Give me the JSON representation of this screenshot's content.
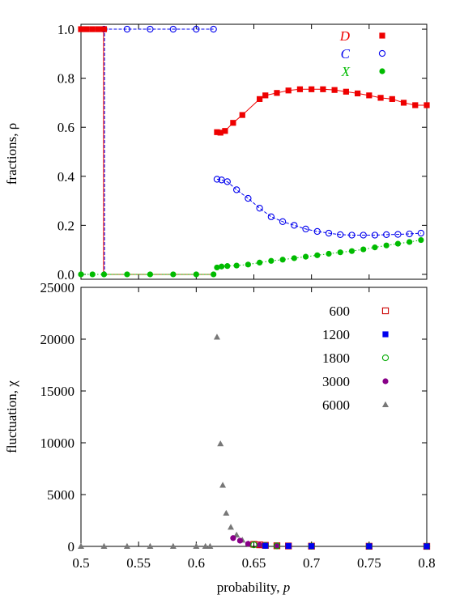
{
  "chart_data": [
    {
      "type": "line",
      "ylabel": "fractions, ρ",
      "xlim": [
        0.5,
        0.8
      ],
      "ylim": [
        -0.02,
        1.02
      ],
      "yticks": [
        "0.0",
        "0.2",
        "0.4",
        "0.6",
        "0.8",
        "1.0"
      ],
      "ytick_values": [
        0,
        0.2,
        0.4,
        0.6,
        0.8,
        1.0
      ],
      "legend_position": "top-right",
      "series": [
        {
          "name": "D",
          "color": "#ee0000",
          "marker": "filled-square",
          "line": "solid",
          "segments": [
            {
              "x": [
                0.5,
                0.505,
                0.51,
                0.515,
                0.52
              ],
              "y": [
                1.0,
                1.0,
                1.0,
                1.0,
                1.0
              ]
            },
            {
              "x": [
                0.618,
                0.621,
                0.625,
                0.632,
                0.64,
                0.655,
                0.66,
                0.67,
                0.68,
                0.69,
                0.7,
                0.71,
                0.72,
                0.73,
                0.74,
                0.75,
                0.76,
                0.77,
                0.78,
                0.79,
                0.8
              ],
              "y": [
                0.58,
                0.578,
                0.585,
                0.618,
                0.65,
                0.715,
                0.73,
                0.74,
                0.75,
                0.755,
                0.755,
                0.755,
                0.752,
                0.745,
                0.738,
                0.73,
                0.72,
                0.715,
                0.7,
                0.69,
                0.69
              ]
            }
          ]
        },
        {
          "name": "C",
          "color": "#0000ee",
          "marker": "open-circle",
          "line": "dashed",
          "segments": [
            {
              "x": [
                0.52,
                0.54,
                0.56,
                0.58,
                0.6,
                0.615
              ],
              "y": [
                1.0,
                1.0,
                1.0,
                1.0,
                1.0,
                1.0
              ]
            },
            {
              "x": [
                0.618,
                0.622,
                0.627,
                0.635,
                0.645,
                0.655,
                0.665,
                0.675,
                0.685,
                0.695,
                0.705,
                0.715,
                0.725,
                0.735,
                0.745,
                0.755,
                0.765,
                0.775,
                0.785,
                0.795
              ],
              "y": [
                0.388,
                0.385,
                0.378,
                0.345,
                0.31,
                0.27,
                0.235,
                0.215,
                0.2,
                0.185,
                0.175,
                0.168,
                0.162,
                0.16,
                0.16,
                0.16,
                0.162,
                0.163,
                0.165,
                0.168
              ]
            }
          ]
        },
        {
          "name": "X",
          "color": "#00bb00",
          "marker": "filled-circle",
          "line": "dotted",
          "segments": [
            {
              "x": [
                0.5,
                0.51,
                0.52,
                0.54,
                0.56,
                0.58,
                0.6,
                0.615
              ],
              "y": [
                0.0,
                0.0,
                0.0,
                0.0,
                0.0,
                0.0,
                0.0,
                0.0
              ]
            },
            {
              "x": [
                0.618,
                0.622,
                0.627,
                0.635,
                0.645,
                0.655,
                0.665,
                0.675,
                0.685,
                0.695,
                0.705,
                0.715,
                0.725,
                0.735,
                0.745,
                0.755,
                0.765,
                0.775,
                0.785,
                0.795
              ],
              "y": [
                0.028,
                0.032,
                0.034,
                0.036,
                0.04,
                0.048,
                0.055,
                0.06,
                0.066,
                0.072,
                0.078,
                0.084,
                0.09,
                0.095,
                0.102,
                0.11,
                0.118,
                0.125,
                0.132,
                0.14
              ]
            }
          ]
        }
      ],
      "transition_line": {
        "x": 0.52,
        "y_from": 0.0,
        "y_to": 1.0,
        "colors": [
          "#ee0000",
          "#0000ee"
        ]
      },
      "plateau_segment": {
        "x": [
          0.52,
          0.54,
          0.56,
          0.58,
          0.6,
          0.615
        ],
        "y": [
          0.0,
          0.0,
          0.0,
          0.0,
          0.0,
          0.0
        ],
        "color": "#996600"
      }
    },
    {
      "type": "scatter",
      "xlabel": "probability, p",
      "ylabel": "fluctuation, χ",
      "xlim": [
        0.5,
        0.8
      ],
      "ylim": [
        0,
        25000
      ],
      "xticks": [
        "0.5",
        "0.55",
        "0.6",
        "0.65",
        "0.7",
        "0.75",
        "0.8"
      ],
      "xtick_values": [
        0.5,
        0.55,
        0.6,
        0.65,
        0.7,
        0.75,
        0.8
      ],
      "yticks": [
        "0",
        "5000",
        "10000",
        "15000",
        "20000",
        "25000"
      ],
      "ytick_values": [
        0,
        5000,
        10000,
        15000,
        20000,
        25000
      ],
      "legend_position": "top-right",
      "series": [
        {
          "name": "600",
          "color": "#cc0000",
          "marker": "open-square",
          "x": [
            0.65,
            0.655,
            0.66,
            0.67,
            0.68,
            0.7,
            0.75,
            0.8
          ],
          "y": [
            200,
            150,
            100,
            60,
            40,
            20,
            10,
            5
          ]
        },
        {
          "name": "1200",
          "color": "#0000ee",
          "marker": "filled-square",
          "x": [
            0.66,
            0.68,
            0.7,
            0.75,
            0.8
          ],
          "y": [
            60,
            40,
            20,
            10,
            5
          ]
        },
        {
          "name": "1800",
          "color": "#00aa00",
          "marker": "open-circle",
          "x": [
            0.65,
            0.66,
            0.67,
            0.7,
            0.75,
            0.8
          ],
          "y": [
            150,
            80,
            50,
            20,
            10,
            5
          ]
        },
        {
          "name": "3000",
          "color": "#880088",
          "marker": "filled-circle",
          "x": [
            0.632,
            0.638,
            0.645,
            0.655,
            0.66,
            0.67,
            0.7,
            0.75,
            0.8
          ],
          "y": [
            800,
            550,
            250,
            120,
            80,
            50,
            20,
            10,
            5
          ]
        },
        {
          "name": "6000",
          "color": "#777777",
          "marker": "filled-triangle",
          "x": [
            0.5,
            0.52,
            0.54,
            0.56,
            0.58,
            0.6,
            0.608,
            0.612,
            0.618,
            0.621,
            0.623,
            0.626,
            0.63,
            0.635,
            0.64,
            0.645
          ],
          "y": [
            0,
            0,
            0,
            0,
            0,
            0,
            0,
            0,
            20200,
            9900,
            5900,
            3200,
            1850,
            1100,
            600,
            250
          ]
        }
      ]
    }
  ]
}
